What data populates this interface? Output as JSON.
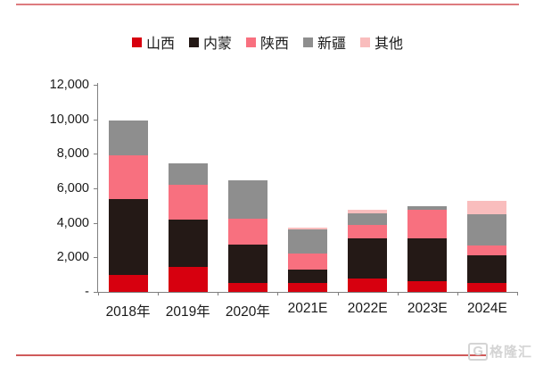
{
  "watermark": {
    "icon_text": "G",
    "text": "格隆汇"
  },
  "chart_data": {
    "type": "bar",
    "stacked": true,
    "title": "",
    "xlabel": "",
    "ylabel": "",
    "grid": false,
    "legend_position": "top",
    "categories": [
      "2018年",
      "2019年",
      "2020年",
      "2021E",
      "2022E",
      "2023E",
      "2024E"
    ],
    "series": [
      {
        "name": "山西",
        "color": "#d7000f",
        "values": [
          1000,
          1450,
          500,
          500,
          800,
          600,
          500
        ]
      },
      {
        "name": "内蒙",
        "color": "#241916",
        "values": [
          4400,
          2750,
          2250,
          800,
          2300,
          2500,
          1600
        ]
      },
      {
        "name": "陕西",
        "color": "#f8707f",
        "values": [
          2500,
          2000,
          1500,
          900,
          800,
          1650,
          600
        ]
      },
      {
        "name": "新疆",
        "color": "#8e8e8e",
        "values": [
          2050,
          1250,
          2200,
          1400,
          650,
          200,
          1800
        ]
      },
      {
        "name": "其他",
        "color": "#f9bdbd",
        "values": [
          0,
          0,
          0,
          150,
          200,
          0,
          800
        ]
      }
    ],
    "totals": [
      9950,
      7450,
      6450,
      3750,
      4750,
      4950,
      5300
    ],
    "ylim": [
      0,
      12000
    ],
    "ytick_step": 2000,
    "ytick_labels": [
      "12,000",
      "10,000",
      "8,000",
      "6,000",
      "4,000",
      "2,000",
      "-"
    ]
  }
}
